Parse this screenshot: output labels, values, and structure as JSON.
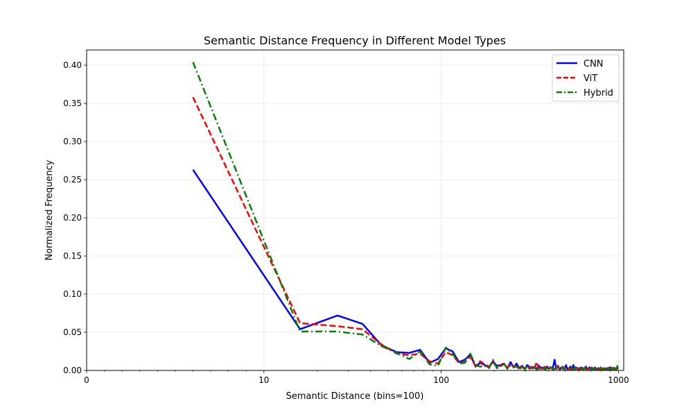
{
  "chart_data": {
    "type": "line",
    "title": "Semantic Distance Frequency in Different Model Types",
    "xlabel": "Semantic Distance (bins=100)",
    "ylabel": "Normalized Frequency",
    "xscale": "symlog",
    "xlim": [
      0,
      1070
    ],
    "ylim": [
      0,
      0.42
    ],
    "x_ticks": [
      0,
      10,
      100,
      1000
    ],
    "x_tick_labels": [
      "0",
      "10",
      "100",
      "1000"
    ],
    "y_ticks": [
      0,
      0.05,
      0.1,
      0.15,
      0.2,
      0.25,
      0.3,
      0.35,
      0.4
    ],
    "y_tick_labels": [
      "0.00",
      "0.05",
      "0.10",
      "0.15",
      "0.20",
      "0.25",
      "0.30",
      "0.35",
      "0.40"
    ],
    "grid": true,
    "legend_position": "top-right",
    "series": [
      {
        "name": "CNN",
        "color": "#0000ff",
        "style": "solid",
        "x": [
          6,
          16,
          26,
          36,
          46,
          56,
          66,
          76,
          86,
          96,
          106,
          116,
          126,
          136,
          146,
          156,
          166,
          176,
          186,
          196,
          206,
          216,
          226,
          236,
          246,
          256,
          266,
          276,
          286,
          296,
          306,
          316,
          326,
          336,
          346,
          356,
          366,
          376,
          386,
          396,
          406,
          416,
          426,
          436,
          446,
          456,
          466,
          476,
          486,
          496,
          506,
          516,
          526,
          536,
          546,
          556,
          566,
          576,
          586,
          596,
          606,
          616,
          626,
          636,
          646,
          656,
          666,
          676,
          686,
          696,
          706,
          716,
          726,
          736,
          746,
          756,
          766,
          776,
          786,
          796,
          806,
          816,
          826,
          836,
          846,
          856,
          866,
          876,
          886,
          896,
          906,
          916,
          926,
          936,
          946,
          956,
          966,
          976,
          986,
          996
        ],
        "values": [
          0.263,
          0.054,
          0.072,
          0.061,
          0.033,
          0.024,
          0.023,
          0.027,
          0.01,
          0.015,
          0.029,
          0.025,
          0.011,
          0.014,
          0.021,
          0.005,
          0.01,
          0.007,
          0.004,
          0.012,
          0.006,
          0.007,
          0.009,
          0.003,
          0.011,
          0.004,
          0.009,
          0.003,
          0.006,
          0.002,
          0.007,
          0.004,
          0.003,
          0.005,
          0.002,
          0.006,
          0.003,
          0.004,
          0.002,
          0.005,
          0.002,
          0.004,
          0.003,
          0.014,
          0.002,
          0.006,
          0.001,
          0.004,
          0.003,
          0.002,
          0.007,
          0.001,
          0.003,
          0.005,
          0.001,
          0.007,
          0.002,
          0.004,
          0.001,
          0.003,
          0.002,
          0.004,
          0.001,
          0.003,
          0.002,
          0.005,
          0.001,
          0.002,
          0.004,
          0.001,
          0.003,
          0.002,
          0.001,
          0.004,
          0.002,
          0.001,
          0.003,
          0.002,
          0.001,
          0.004,
          0.001,
          0.002,
          0.003,
          0.001,
          0.002,
          0.001,
          0.003,
          0.002,
          0.001,
          0.002,
          0.004,
          0.001,
          0.002,
          0.001,
          0.003,
          0.001,
          0.002,
          0.001,
          0.004,
          0.002
        ]
      },
      {
        "name": "ViT",
        "color": "#ff0000",
        "style": "dashed",
        "x": [
          6,
          16,
          26,
          36,
          46,
          56,
          66,
          76,
          86,
          96,
          106,
          116,
          126,
          136,
          146,
          156,
          166,
          176,
          186,
          196,
          206,
          216,
          226,
          236,
          246,
          256,
          266,
          276,
          286,
          296,
          306,
          316,
          326,
          336,
          346,
          356,
          366,
          376,
          386,
          396,
          406,
          416,
          426,
          436,
          446,
          456,
          466,
          476,
          486,
          496,
          506,
          516,
          526,
          536,
          546,
          556,
          566,
          576,
          586,
          596,
          606,
          616,
          626,
          636,
          646,
          656,
          666,
          676,
          686,
          696,
          706,
          716,
          726,
          736,
          746,
          756,
          766,
          776,
          786,
          796,
          806,
          816,
          826,
          836,
          846,
          856,
          866,
          876,
          886,
          896,
          906,
          916,
          926,
          936,
          946,
          956,
          966,
          976,
          986,
          996
        ],
        "values": [
          0.358,
          0.062,
          0.058,
          0.054,
          0.034,
          0.022,
          0.02,
          0.022,
          0.012,
          0.009,
          0.024,
          0.02,
          0.01,
          0.011,
          0.018,
          0.006,
          0.012,
          0.008,
          0.005,
          0.011,
          0.004,
          0.006,
          0.008,
          0.003,
          0.008,
          0.005,
          0.006,
          0.002,
          0.004,
          0.003,
          0.005,
          0.002,
          0.006,
          0.003,
          0.011,
          0.002,
          0.004,
          0.002,
          0.005,
          0.003,
          0.002,
          0.004,
          0.001,
          0.003,
          0.002,
          0.005,
          0.001,
          0.003,
          0.002,
          0.004,
          0.001,
          0.002,
          0.003,
          0.001,
          0.004,
          0.002,
          0.001,
          0.003,
          0.002,
          0.005,
          0.001,
          0.002,
          0.003,
          0.001,
          0.004,
          0.002,
          0.001,
          0.003,
          0.001,
          0.002,
          0.004,
          0.001,
          0.002,
          0.003,
          0.001,
          0.002,
          0.001,
          0.003,
          0.002,
          0.001,
          0.004,
          0.001,
          0.002,
          0.001,
          0.003,
          0.002,
          0.001,
          0.002,
          0.004,
          0.001,
          0.002,
          0.001,
          0.003,
          0.001,
          0.002,
          0.001,
          0.003,
          0.002,
          0.001,
          0.002
        ]
      },
      {
        "name": "Hybrid",
        "color": "#008000",
        "style": "dashdot",
        "x": [
          6,
          16,
          26,
          36,
          46,
          56,
          66,
          76,
          86,
          96,
          106,
          116,
          126,
          136,
          146,
          156,
          166,
          176,
          186,
          196,
          206,
          216,
          226,
          236,
          246,
          256,
          266,
          276,
          286,
          296,
          306,
          316,
          326,
          336,
          346,
          356,
          366,
          376,
          386,
          396,
          406,
          416,
          426,
          436,
          446,
          456,
          466,
          476,
          486,
          496,
          506,
          516,
          526,
          536,
          546,
          556,
          566,
          576,
          586,
          596,
          606,
          616,
          626,
          636,
          646,
          656,
          666,
          676,
          686,
          696,
          706,
          716,
          726,
          736,
          746,
          756,
          766,
          776,
          786,
          796,
          806,
          816,
          826,
          836,
          846,
          856,
          866,
          876,
          886,
          896,
          906,
          916,
          926,
          936,
          946,
          956,
          966,
          976,
          986,
          996
        ],
        "values": [
          0.404,
          0.051,
          0.051,
          0.047,
          0.032,
          0.023,
          0.015,
          0.025,
          0.008,
          0.006,
          0.03,
          0.022,
          0.009,
          0.01,
          0.022,
          0.007,
          0.005,
          0.006,
          0.003,
          0.014,
          0.003,
          0.005,
          0.009,
          0.002,
          0.006,
          0.004,
          0.005,
          0.002,
          0.007,
          0.001,
          0.006,
          0.003,
          0.002,
          0.004,
          0.001,
          0.003,
          0.002,
          0.005,
          0.001,
          0.003,
          0.002,
          0.006,
          0.001,
          0.002,
          0.004,
          0.001,
          0.003,
          0.002,
          0.005,
          0.001,
          0.002,
          0.003,
          0.001,
          0.002,
          0.004,
          0.001,
          0.002,
          0.003,
          0.001,
          0.002,
          0.001,
          0.003,
          0.002,
          0.001,
          0.004,
          0.001,
          0.002,
          0.001,
          0.003,
          0.001,
          0.002,
          0.003,
          0.001,
          0.002,
          0.001,
          0.003,
          0.002,
          0.001,
          0.002,
          0.004,
          0.001,
          0.002,
          0.001,
          0.003,
          0.001,
          0.002,
          0.001,
          0.003,
          0.002,
          0.001,
          0.002,
          0.001,
          0.003,
          0.001,
          0.005,
          0.001,
          0.002,
          0.001,
          0.006,
          0.002
        ]
      }
    ]
  }
}
